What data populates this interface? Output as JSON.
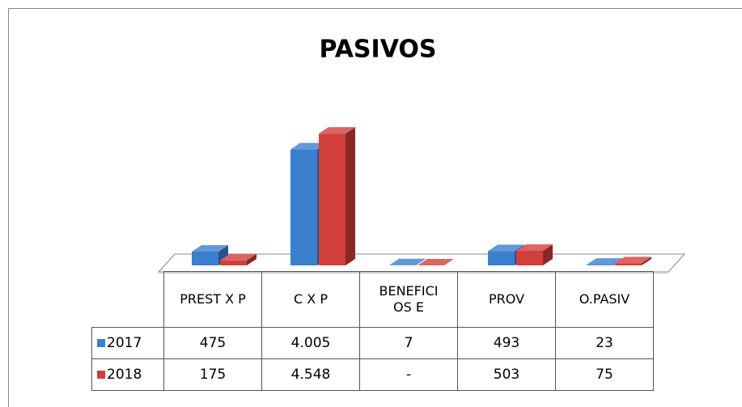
{
  "chart_data": {
    "type": "bar3d",
    "title": "PASIVOS",
    "categories": [
      "PREST X P",
      "C X P",
      "BENEFICIOS E",
      "PROV",
      "O.PASIV"
    ],
    "series": [
      {
        "name": "2017",
        "color": "#3b7fcf",
        "values": [
          475,
          4005,
          7,
          493,
          23
        ],
        "value_labels": [
          "475",
          "4.005",
          "7",
          "493",
          "23"
        ]
      },
      {
        "name": "2018",
        "color": "#d23f3a",
        "values": [
          175,
          4548,
          0,
          503,
          75
        ],
        "value_labels": [
          "175",
          "4.548",
          "-",
          "503",
          "75"
        ]
      }
    ],
    "ylim": [
      0,
      5000
    ],
    "data_table": true
  }
}
